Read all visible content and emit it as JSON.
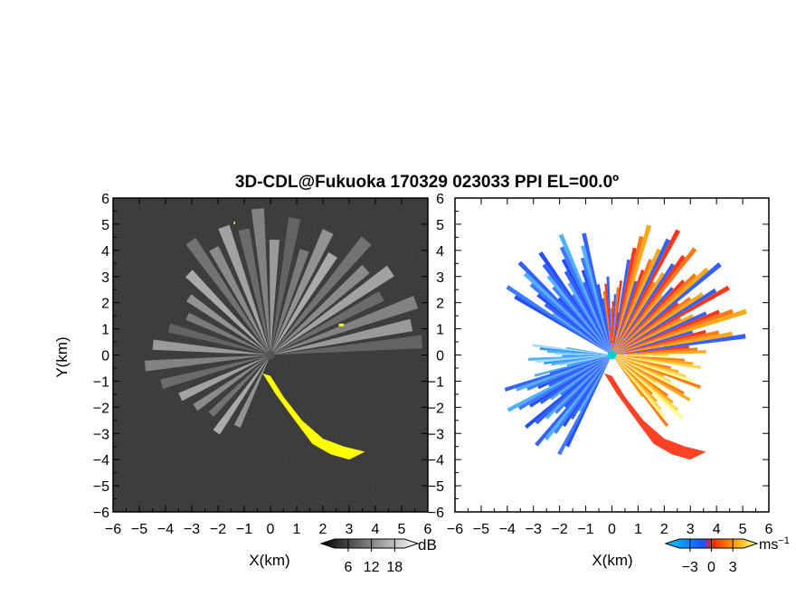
{
  "title": "3D-CDL@Fukuoka 170329 023033 PPI EL=00.0º",
  "panels": [
    {
      "id": "reflectivity",
      "xlabel": "X(km)",
      "ylabel": "Y(km)",
      "colorbar": {
        "unit": "dB",
        "ticks": [
          "6",
          "12",
          "18"
        ],
        "colors": [
          "#000000",
          "#ffffff"
        ]
      },
      "highlight_color": "#ffff00",
      "background": "#2a2a2a"
    },
    {
      "id": "velocity",
      "xlabel": "X(km)",
      "colorbar": {
        "unit": "ms",
        "unit_exp": "−1",
        "ticks": [
          "−3",
          "0",
          "3"
        ],
        "colors": [
          "#00ccff",
          "#1e50ff",
          "#ff2000",
          "#ffa000",
          "#ffff80"
        ]
      },
      "background": "#ffffff"
    }
  ],
  "chart_data": [
    {
      "type": "heatmap",
      "title": "3D-CDL@Fukuoka 170329 023033 PPI EL=00.0º",
      "xlabel": "X(km)",
      "ylabel": "Y(km)",
      "xlim": [
        -6,
        6
      ],
      "ylim": [
        -6,
        6
      ],
      "x_ticks": [
        "−6",
        "−5",
        "−4",
        "−3",
        "−2",
        "−1",
        "0",
        "1",
        "2",
        "3",
        "4",
        "5",
        "6"
      ],
      "y_ticks": [
        "6",
        "5",
        "4",
        "3",
        "2",
        "1",
        "0",
        "−1",
        "−2",
        "−3",
        "−4",
        "−5",
        "−6"
      ],
      "colorbar_unit": "dB",
      "colorbar_ticks": [
        6,
        12,
        18
      ],
      "yellow_region_km": [
        [
          -0.3,
          -0.7
        ],
        [
          0.2,
          -1.5
        ],
        [
          1.0,
          -2.6
        ],
        [
          1.6,
          -3.4
        ],
        [
          2.3,
          -3.8
        ],
        [
          3.0,
          -4.0
        ],
        [
          3.6,
          -3.7
        ],
        [
          2.8,
          -3.5
        ],
        [
          2.0,
          -3.2
        ],
        [
          1.2,
          -2.5
        ],
        [
          0.5,
          -1.6
        ],
        [
          0.0,
          -0.8
        ]
      ],
      "beam_azimuths_deg": [
        5,
        12,
        20,
        28,
        35,
        42,
        50,
        58,
        65,
        72,
        80,
        88,
        95,
        102,
        110,
        118,
        125,
        135,
        145,
        155,
        165,
        175,
        185,
        195,
        205,
        215,
        225,
        235,
        245
      ],
      "beam_lengths_km": [
        5.8,
        5.5,
        5.9,
        4.8,
        5.6,
        4.9,
        5.7,
        4.5,
        5.2,
        4.2,
        5.3,
        4.4,
        5.6,
        4.9,
        5.2,
        4.6,
        5.3,
        4.4,
        3.8,
        3.5,
        4.0,
        4.5,
        4.8,
        4.3,
        3.8,
        3.5,
        3.2,
        3.6,
        3.0
      ]
    },
    {
      "type": "heatmap",
      "xlabel": "X(km)",
      "xlim": [
        -6,
        6
      ],
      "ylim": [
        -6,
        6
      ],
      "x_ticks": [
        "−6",
        "−5",
        "−4",
        "−3",
        "−2",
        "−1",
        "0",
        "1",
        "2",
        "3",
        "4",
        "5",
        "6"
      ],
      "colorbar_unit": "ms−1",
      "colorbar_ticks": [
        -3,
        0,
        3
      ],
      "sectors": [
        {
          "from_deg": 195,
          "to_deg": 245,
          "len_km": 4.5,
          "kind": "approach"
        },
        {
          "from_deg": 170,
          "to_deg": 195,
          "len_km": 3.2,
          "kind": "weak"
        },
        {
          "from_deg": 100,
          "to_deg": 150,
          "len_km": 5.0,
          "kind": "approach"
        },
        {
          "from_deg": 80,
          "to_deg": 100,
          "len_km": 3.0,
          "kind": "mixed"
        },
        {
          "from_deg": 5,
          "to_deg": 80,
          "len_km": 5.4,
          "kind": "recede"
        },
        {
          "from_deg": -55,
          "to_deg": 5,
          "len_km": 3.6,
          "kind": "strong"
        }
      ]
    }
  ]
}
